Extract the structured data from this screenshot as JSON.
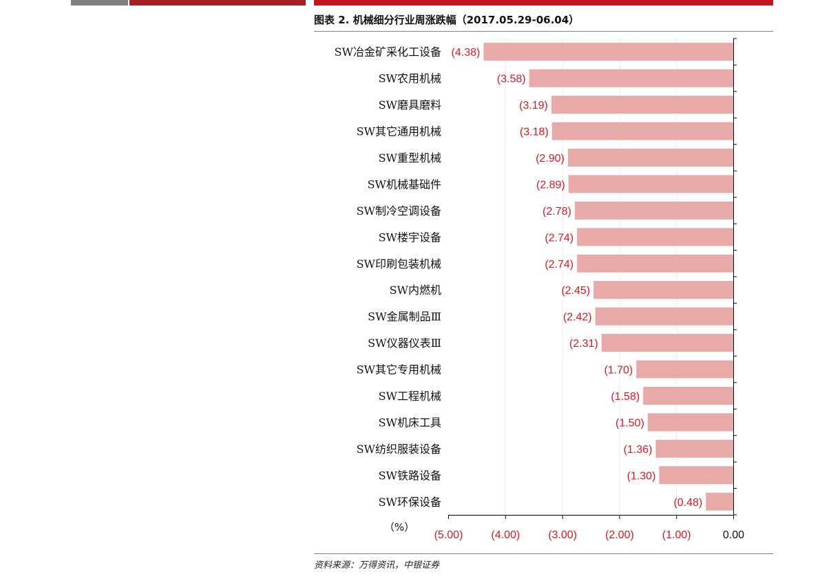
{
  "header": {
    "title": "图表 2. 机械细分行业周涨跌幅（2017.05.29-06.04）"
  },
  "footer": {
    "source": "资料来源：万得资讯，中银证券"
  },
  "colors": {
    "bar": "#e8a9a9",
    "label_red": "#e0161e",
    "axis": "#000000",
    "grid": "#d9d9d9"
  },
  "chart_data": {
    "type": "bar",
    "orientation": "horizontal",
    "unit_label": "（%）",
    "categories": [
      "SW冶金矿采化工设备",
      "SW农用机械",
      "SW磨具磨料",
      "SW其它通用机械",
      "SW重型机械",
      "SW机械基础件",
      "SW制冷空调设备",
      "SW楼宇设备",
      "SW印刷包装机械",
      "SW内燃机",
      "SW金属制品Ⅲ",
      "SW仪器仪表Ⅲ",
      "SW其它专用机械",
      "SW工程机械",
      "SW机床工具",
      "SW纺织服装设备",
      "SW铁路设备",
      "SW环保设备"
    ],
    "values": [
      -4.38,
      -3.58,
      -3.19,
      -3.18,
      -2.9,
      -2.89,
      -2.78,
      -2.74,
      -2.74,
      -2.45,
      -2.42,
      -2.31,
      -1.7,
      -1.58,
      -1.5,
      -1.36,
      -1.3,
      -0.48
    ],
    "value_labels": [
      "(4.38)",
      "(3.58)",
      "(3.19)",
      "(3.18)",
      "(2.90)",
      "(2.89)",
      "(2.78)",
      "(2.74)",
      "(2.74)",
      "(2.45)",
      "(2.42)",
      "(2.31)",
      "(1.70)",
      "(1.58)",
      "(1.50)",
      "(1.36)",
      "(1.30)",
      "(0.48)"
    ],
    "xlim": [
      -5,
      0
    ],
    "ticks": [
      -5,
      -4,
      -3,
      -2,
      -1,
      0
    ],
    "tick_labels": [
      "(5.00)",
      "(4.00)",
      "(3.00)",
      "(2.00)",
      "(1.00)",
      "0.00"
    ],
    "grid": true
  }
}
